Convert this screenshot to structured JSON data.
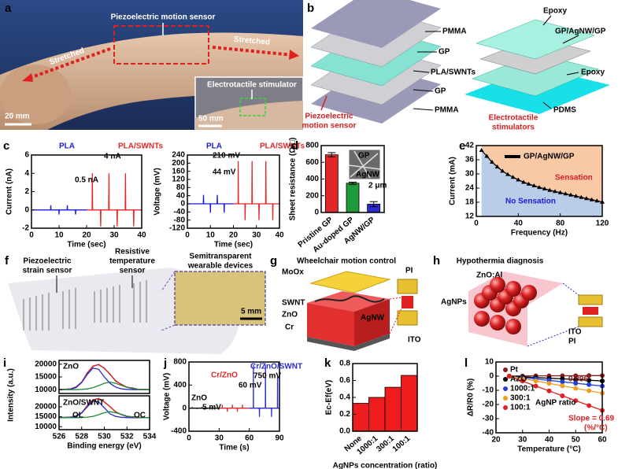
{
  "panels": {
    "a": {
      "letter": "a",
      "title": "Piezoelectric motion sensor",
      "stretched_left": "Stretched",
      "stretched_right": "Stretched",
      "scale": "20 mm",
      "inset_label": "Electrotactile stimulator",
      "inset_scale": "50 mm"
    },
    "b": {
      "letter": "b",
      "left_layers": [
        "PMMA",
        "GP",
        "PLA/SWNTs",
        "GP",
        "PMMA"
      ],
      "left_caption": [
        "Piezoelectric",
        "motion sensor"
      ],
      "right_layers": [
        "Epoxy",
        "GP/AgNW/GP",
        "Epoxy",
        "PDMS"
      ],
      "right_caption": [
        "Electrotactile",
        "stimulators"
      ]
    },
    "f": {
      "letter": "f",
      "strain": [
        "Piezoelectric",
        "strain sensor"
      ],
      "temperature": [
        "Resistive",
        "temperature",
        "sensor"
      ],
      "photo": [
        "Semitransparent",
        "wearable devices"
      ],
      "scale": "5 mm"
    },
    "g": {
      "letter": "g",
      "title": "Wheelchair motion control",
      "labels": [
        "MoOx",
        "SWNT",
        "ZnO",
        "Cr",
        "PI",
        "AgNW",
        "ITO"
      ]
    },
    "h": {
      "letter": "h",
      "title": "Hypothermia diagnosis",
      "labels": [
        "ZnO:Al",
        "AgNPs",
        "ITO",
        "PI"
      ]
    }
  },
  "chart_data": [
    {
      "letter": "c",
      "type": "line",
      "ylabel": "Current (nA)",
      "xlabel": "Time (sec)",
      "xlim": [
        0,
        40
      ],
      "xticks": [
        0,
        10,
        20,
        30,
        40
      ],
      "ylim": [
        -2,
        6
      ],
      "yticks": [
        -2,
        0,
        2,
        4,
        6
      ],
      "series": [
        {
          "name": "PLA",
          "color": "#1a1adb",
          "x": [
            0,
            6.9,
            7,
            7.1,
            9.9,
            10,
            10.1,
            12.9,
            13,
            13.1,
            15.9,
            16,
            16.1,
            20
          ],
          "values": [
            0,
            0,
            0.5,
            0,
            0,
            -0.5,
            0,
            0,
            0.5,
            0,
            0,
            -0.5,
            0,
            0
          ]
        },
        {
          "name": "PLA/SWNTs",
          "color": "#e32626",
          "x": [
            20,
            22,
            22.1,
            22.2,
            25,
            25.1,
            25.2,
            28,
            28.1,
            28.2,
            31,
            31.1,
            31.2,
            34,
            34.1,
            34.2,
            37,
            37.1,
            37.2,
            40
          ],
          "values": [
            0,
            0,
            4,
            0,
            0,
            -1.8,
            0,
            0,
            4,
            0,
            0,
            -1.8,
            0,
            0,
            4,
            0,
            0,
            -1.8,
            0,
            0
          ]
        }
      ],
      "annotations": [
        "0.5 nA",
        "4 nA"
      ]
    },
    {
      "type": "line",
      "ylabel": "Voltage (mV)",
      "xlabel": "Time (sec)",
      "xlim": [
        0,
        40
      ],
      "xticks": [
        0,
        10,
        20,
        30,
        40
      ],
      "ylim": [
        -120,
        240
      ],
      "yticks": [
        -120,
        -80,
        -40,
        0,
        40,
        80,
        120,
        160,
        200,
        240
      ],
      "series": [
        {
          "name": "PLA",
          "color": "#1a1adb",
          "x": [
            0,
            6.9,
            7,
            7.1,
            9.9,
            10,
            10.1,
            12.9,
            13,
            13.1,
            15.9,
            16,
            16.1,
            20
          ],
          "values": [
            0,
            0,
            44,
            0,
            0,
            -44,
            0,
            0,
            44,
            0,
            0,
            -44,
            0,
            0
          ]
        },
        {
          "name": "PLA/SWNTs",
          "color": "#e32626",
          "x": [
            20,
            22,
            22.1,
            22.2,
            25,
            25.1,
            25.2,
            28,
            28.1,
            28.2,
            31,
            31.1,
            31.2,
            34,
            34.1,
            34.2,
            37,
            37.1,
            37.2,
            40
          ],
          "values": [
            0,
            0,
            210,
            0,
            0,
            -80,
            0,
            0,
            210,
            0,
            0,
            -80,
            0,
            0,
            210,
            0,
            0,
            -80,
            0,
            0
          ]
        }
      ],
      "annotations": [
        "44 mV",
        "210 mV"
      ]
    },
    {
      "letter": "d",
      "type": "bar",
      "ylabel": "Sheet resistance (Ω/□)",
      "categories": [
        "Pristine GP",
        "Au-doped GP",
        "AgNW/GP"
      ],
      "values": [
        690,
        350,
        100
      ],
      "errors": [
        25,
        12,
        30
      ],
      "colors": [
        "#e32626",
        "#1f9a3a",
        "#2a2ad0"
      ],
      "ylim": [
        0,
        800
      ],
      "yticks": [
        0,
        200,
        400,
        600,
        800
      ],
      "annotations": [
        "GP",
        "AgNW",
        "2 μm"
      ]
    },
    {
      "letter": "e",
      "type": "line",
      "ylabel": "Current (mA)",
      "xlabel": "Frequency (Hz)",
      "xlim": [
        0,
        120
      ],
      "xticks": [
        0,
        40,
        80,
        120
      ],
      "ylim": [
        12,
        42
      ],
      "yticks": [
        12,
        18,
        24,
        30,
        36,
        42
      ],
      "fill_below": "#b9cde8",
      "fill_above": "#f9c9a6",
      "x": [
        5,
        10,
        15,
        20,
        25,
        30,
        35,
        40,
        45,
        50,
        55,
        60,
        65,
        70,
        75,
        80,
        85,
        90,
        95,
        100,
        105,
        110,
        115,
        120
      ],
      "series": [
        {
          "name": "GP/AgNW/GP",
          "color": "#000000",
          "marker": "triangle",
          "values": [
            40,
            37.5,
            35,
            33,
            31.2,
            29.8,
            28.6,
            27.5,
            26.5,
            25.7,
            25,
            24.3,
            23.7,
            23.1,
            22.6,
            22.1,
            21.6,
            21.1,
            20.6,
            20.1,
            19.6,
            19.1,
            18.6,
            18.1
          ]
        }
      ],
      "annotations": [
        "Sensation",
        "No Sensation"
      ]
    },
    {
      "letter": "i",
      "type": "line",
      "title": "ZnO",
      "ylabel": "Intensity (a.u.)",
      "xlim": [
        526,
        534
      ],
      "ylim": [
        8500,
        21500
      ],
      "yticks": [
        10000,
        15000,
        20000
      ],
      "x": [
        526,
        526.5,
        527,
        527.5,
        528,
        528.5,
        529,
        529.5,
        530,
        530.5,
        531,
        531.5,
        532,
        532.5,
        533,
        533.5,
        534
      ],
      "series": [
        {
          "color": "#000000",
          "values": [
            10050,
            10150,
            10250,
            11100,
            12900,
            16600,
            19200,
            19900,
            18400,
            16100,
            13400,
            12100,
            10900,
            10600,
            10150,
            10100,
            10050
          ]
        },
        {
          "color": "#e32626",
          "values": [
            10000,
            10100,
            10300,
            11000,
            13000,
            16500,
            19300,
            19800,
            18500,
            16000,
            13500,
            12000,
            11000,
            10500,
            10200,
            10100,
            10000
          ]
        },
        {
          "color": "#2a2ad0",
          "values": [
            10000,
            10050,
            10200,
            10800,
            12800,
            16000,
            18500,
            18000,
            15000,
            12500,
            11000,
            10300,
            10100,
            10000,
            10000,
            10000,
            10000
          ]
        },
        {
          "color": "#1f8a3a",
          "values": [
            10000,
            10000,
            10000,
            10000,
            10100,
            10300,
            10800,
            11600,
            12500,
            13000,
            12500,
            11700,
            10900,
            10400,
            10100,
            10000,
            10000
          ]
        }
      ]
    },
    {
      "type": "line",
      "title": "ZnO/SWNT",
      "xlabel": "Binding energy (eV)",
      "xlim": [
        526,
        534
      ],
      "xticks": [
        526,
        528,
        530,
        532,
        534
      ],
      "ylim": [
        8500,
        25500
      ],
      "yticks": [
        10000,
        15000,
        20000
      ],
      "x": [
        526,
        526.5,
        527,
        527.5,
        528,
        528.5,
        529,
        529.5,
        530,
        530.5,
        531,
        531.5,
        532,
        532.5,
        533,
        533.5,
        534
      ],
      "series": [
        {
          "color": "#000000",
          "values": [
            14550,
            14650,
            14750,
            15400,
            16900,
            20600,
            23400,
            24100,
            22400,
            20100,
            17400,
            16100,
            15100,
            14950,
            14650,
            14600,
            14550
          ]
        },
        {
          "color": "#e32626",
          "values": [
            14500,
            14600,
            14800,
            15300,
            17000,
            20500,
            23500,
            24000,
            22500,
            20000,
            17500,
            16000,
            15200,
            14900,
            14700,
            14600,
            14500
          ]
        },
        {
          "color": "#2a2ad0",
          "values": [
            14500,
            14550,
            14700,
            15200,
            16900,
            20000,
            22800,
            22500,
            19500,
            16500,
            15200,
            14700,
            14550,
            14500,
            14500,
            14500,
            14500
          ]
        },
        {
          "color": "#1f8a3a",
          "values": [
            14500,
            14500,
            14500,
            14500,
            14600,
            14800,
            15200,
            16000,
            17000,
            17500,
            17000,
            16200,
            15300,
            14800,
            14600,
            14500,
            14500
          ]
        }
      ],
      "annotations": [
        "OL",
        "OC"
      ]
    },
    {
      "letter": "j",
      "type": "line",
      "ylabel": "Voltage (mV)",
      "xlabel": "Time (s)",
      "xlim": [
        0,
        90
      ],
      "xticks": [
        0,
        30,
        60,
        90
      ],
      "ylim": [
        -400,
        800
      ],
      "yticks": [
        -400,
        0,
        400,
        800
      ],
      "series": [
        {
          "name": "ZnO",
          "color": "#000000",
          "x": [
            0,
            3,
            3.1,
            3.2,
            8,
            8.1,
            8.2,
            13,
            13.1,
            13.2,
            18,
            18.1,
            18.2,
            23,
            23.1,
            23.2,
            30
          ],
          "values": [
            0,
            0,
            5,
            0,
            0,
            -5,
            0,
            0,
            5,
            0,
            0,
            -5,
            0,
            0,
            5,
            0,
            0
          ]
        },
        {
          "name": "Cr/ZnO",
          "color": "#e32626",
          "x": [
            30,
            33,
            33.1,
            33.2,
            38,
            38.1,
            38.2,
            43,
            43.1,
            43.2,
            48,
            48.1,
            48.2,
            53,
            53.1,
            53.2,
            60
          ],
          "values": [
            0,
            0,
            60,
            0,
            0,
            -60,
            0,
            0,
            60,
            0,
            0,
            -60,
            0,
            0,
            60,
            0,
            0
          ]
        },
        {
          "name": "Cr/ZnO/SWNT",
          "color": "#2a2ad0",
          "x": [
            60,
            64,
            64.1,
            64.2,
            70,
            70.1,
            70.2,
            76,
            76.1,
            76.2,
            82,
            82.1,
            82.2,
            88,
            88.1,
            88.2,
            90
          ],
          "values": [
            0,
            0,
            750,
            0,
            0,
            -150,
            0,
            0,
            750,
            0,
            0,
            -150,
            0,
            0,
            550,
            0,
            0
          ]
        }
      ],
      "annotations": [
        "5 mV",
        "60 mV",
        "750 mV"
      ]
    },
    {
      "letter": "k",
      "type": "bar",
      "ylabel": "Ec-Ef(eV)",
      "xlabel": "AgNPs concentration (ratio)",
      "categories": [
        "None",
        "1000:1",
        "300:1",
        "100:1"
      ],
      "values": [
        0.33,
        0.4,
        0.52,
        0.66
      ],
      "color": "#ee1c1c",
      "ylim": [
        0,
        0.8
      ],
      "yticks": [
        {
          "value": 0,
          "label": "0.0"
        },
        0.2,
        0.4,
        0.6,
        0.8
      ]
    },
    {
      "letter": "l",
      "type": "line",
      "ylabel": "ΔR/R0 (%)",
      "xlabel": "Temperature (°C)",
      "xlim": [
        20,
        60
      ],
      "xticks": [
        20,
        30,
        40,
        50,
        60
      ],
      "ylim": [
        -40,
        10
      ],
      "yticks": [
        -40,
        -30,
        -20,
        -10,
        0,
        10
      ],
      "x": [
        25,
        30,
        35,
        40,
        45,
        50,
        55,
        60
      ],
      "series": [
        {
          "name": "Pt",
          "color": "#8b1a1a",
          "marker": "circle",
          "values": [
            0,
            0.1,
            0.2,
            0.2,
            0.3,
            0.3,
            0.4,
            0.4
          ]
        },
        {
          "name": "AZO",
          "color": "#000000",
          "marker": "circle",
          "values": [
            0,
            -0.5,
            -1,
            -1.5,
            -1.9,
            -2.4,
            -2.9,
            -3.4
          ]
        },
        {
          "name": "1000:1",
          "color": "#1f3fdf",
          "marker": "circle",
          "values": [
            0,
            -1,
            -2,
            -3,
            -4,
            -5,
            -6,
            -7
          ]
        },
        {
          "name": "300:1",
          "color": "#f0a020",
          "marker": "circle",
          "values": [
            0,
            -1.7,
            -3.4,
            -5.1,
            -6.9,
            -8.6,
            -10.3,
            -12
          ]
        },
        {
          "name": "100:1",
          "color": "#e02020",
          "marker": "circle",
          "values": [
            0,
            -3.5,
            -7,
            -10.4,
            -13.9,
            -17.3,
            -20.8,
            -24.2
          ]
        }
      ],
      "legend_title": "AgNP ratio",
      "annotations": [
        "0.096",
        "Slope = 0.69",
        "(%/°C)"
      ]
    }
  ]
}
